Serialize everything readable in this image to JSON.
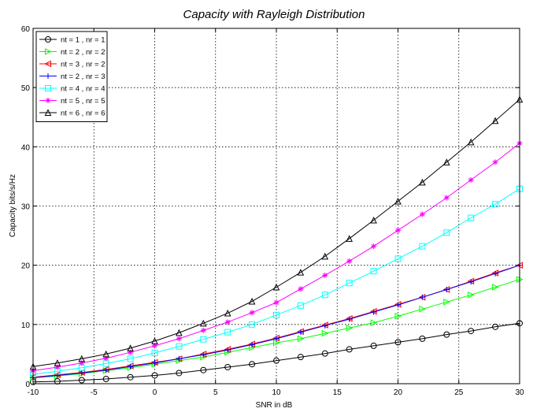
{
  "chart_data": {
    "type": "line",
    "title": "Capacity with Rayleigh Distribution",
    "xlabel": "SNR in dB",
    "ylabel": "Capacity bits/s/Hz",
    "xlim": [
      -10,
      30
    ],
    "ylim": [
      0,
      60
    ],
    "xticks": [
      -10,
      -5,
      0,
      5,
      10,
      15,
      20,
      25,
      30
    ],
    "yticks": [
      0,
      10,
      20,
      30,
      40,
      50,
      60
    ],
    "grid": true,
    "legend_position": "top-left",
    "x": [
      -10,
      -8,
      -6,
      -4,
      -2,
      0,
      2,
      4,
      6,
      8,
      10,
      12,
      14,
      16,
      18,
      20,
      22,
      24,
      26,
      28,
      30
    ],
    "series": [
      {
        "name": "nt = 1 , nr = 1",
        "color": "#000000",
        "marker": "circle",
        "values": [
          0.3,
          0.4,
          0.6,
          0.8,
          1.1,
          1.4,
          1.8,
          2.3,
          2.8,
          3.3,
          3.9,
          4.5,
          5.1,
          5.8,
          6.4,
          7.0,
          7.6,
          8.3,
          8.9,
          9.6,
          10.2
        ]
      },
      {
        "name": "nt = 2 , nr = 2",
        "color": "#00ff00",
        "marker": "triangle-right",
        "values": [
          1.0,
          1.3,
          1.7,
          2.2,
          2.7,
          3.3,
          3.9,
          4.5,
          5.3,
          6.1,
          6.9,
          7.6,
          8.5,
          9.4,
          10.3,
          11.4,
          12.6,
          13.8,
          15.0,
          16.3,
          17.6
        ]
      },
      {
        "name": "nt = 3 , nr = 2",
        "color": "#ff0000",
        "marker": "triangle-left",
        "values": [
          1.1,
          1.5,
          1.9,
          2.4,
          3.0,
          3.6,
          4.2,
          5.0,
          5.8,
          6.7,
          7.7,
          8.8,
          9.9,
          11.0,
          12.2,
          13.4,
          14.6,
          15.9,
          17.3,
          18.7,
          20.0
        ]
      },
      {
        "name": "nt = 2 , nr = 3",
        "color": "#0000ff",
        "marker": "plus",
        "values": [
          1.0,
          1.4,
          1.8,
          2.3,
          2.9,
          3.5,
          4.2,
          4.9,
          5.7,
          6.6,
          7.6,
          8.7,
          9.8,
          10.9,
          12.1,
          13.3,
          14.6,
          15.9,
          17.2,
          18.6,
          20.0
        ]
      },
      {
        "name": "nt = 4 , nr = 4",
        "color": "#00ffff",
        "marker": "square",
        "values": [
          1.6,
          2.1,
          2.7,
          3.4,
          4.2,
          5.2,
          6.3,
          7.5,
          8.7,
          10.0,
          11.6,
          13.2,
          15.0,
          17.0,
          19.0,
          21.1,
          23.2,
          25.5,
          28.0,
          30.3,
          32.9
        ]
      },
      {
        "name": "nt = 5 , nr = 5",
        "color": "#ff00ff",
        "marker": "star",
        "values": [
          2.2,
          2.8,
          3.5,
          4.3,
          5.3,
          6.4,
          7.6,
          9.0,
          10.4,
          12.0,
          13.7,
          16.0,
          18.3,
          20.7,
          23.2,
          25.9,
          28.6,
          31.4,
          34.4,
          37.4,
          40.6
        ]
      },
      {
        "name": "nt = 6 , nr = 6",
        "color": "#000000",
        "marker": "triangle-up",
        "values": [
          2.9,
          3.5,
          4.2,
          5.0,
          6.0,
          7.2,
          8.6,
          10.2,
          11.9,
          13.9,
          16.3,
          18.8,
          21.5,
          24.5,
          27.6,
          30.8,
          34.0,
          37.4,
          40.8,
          44.4,
          48.0
        ]
      }
    ]
  }
}
